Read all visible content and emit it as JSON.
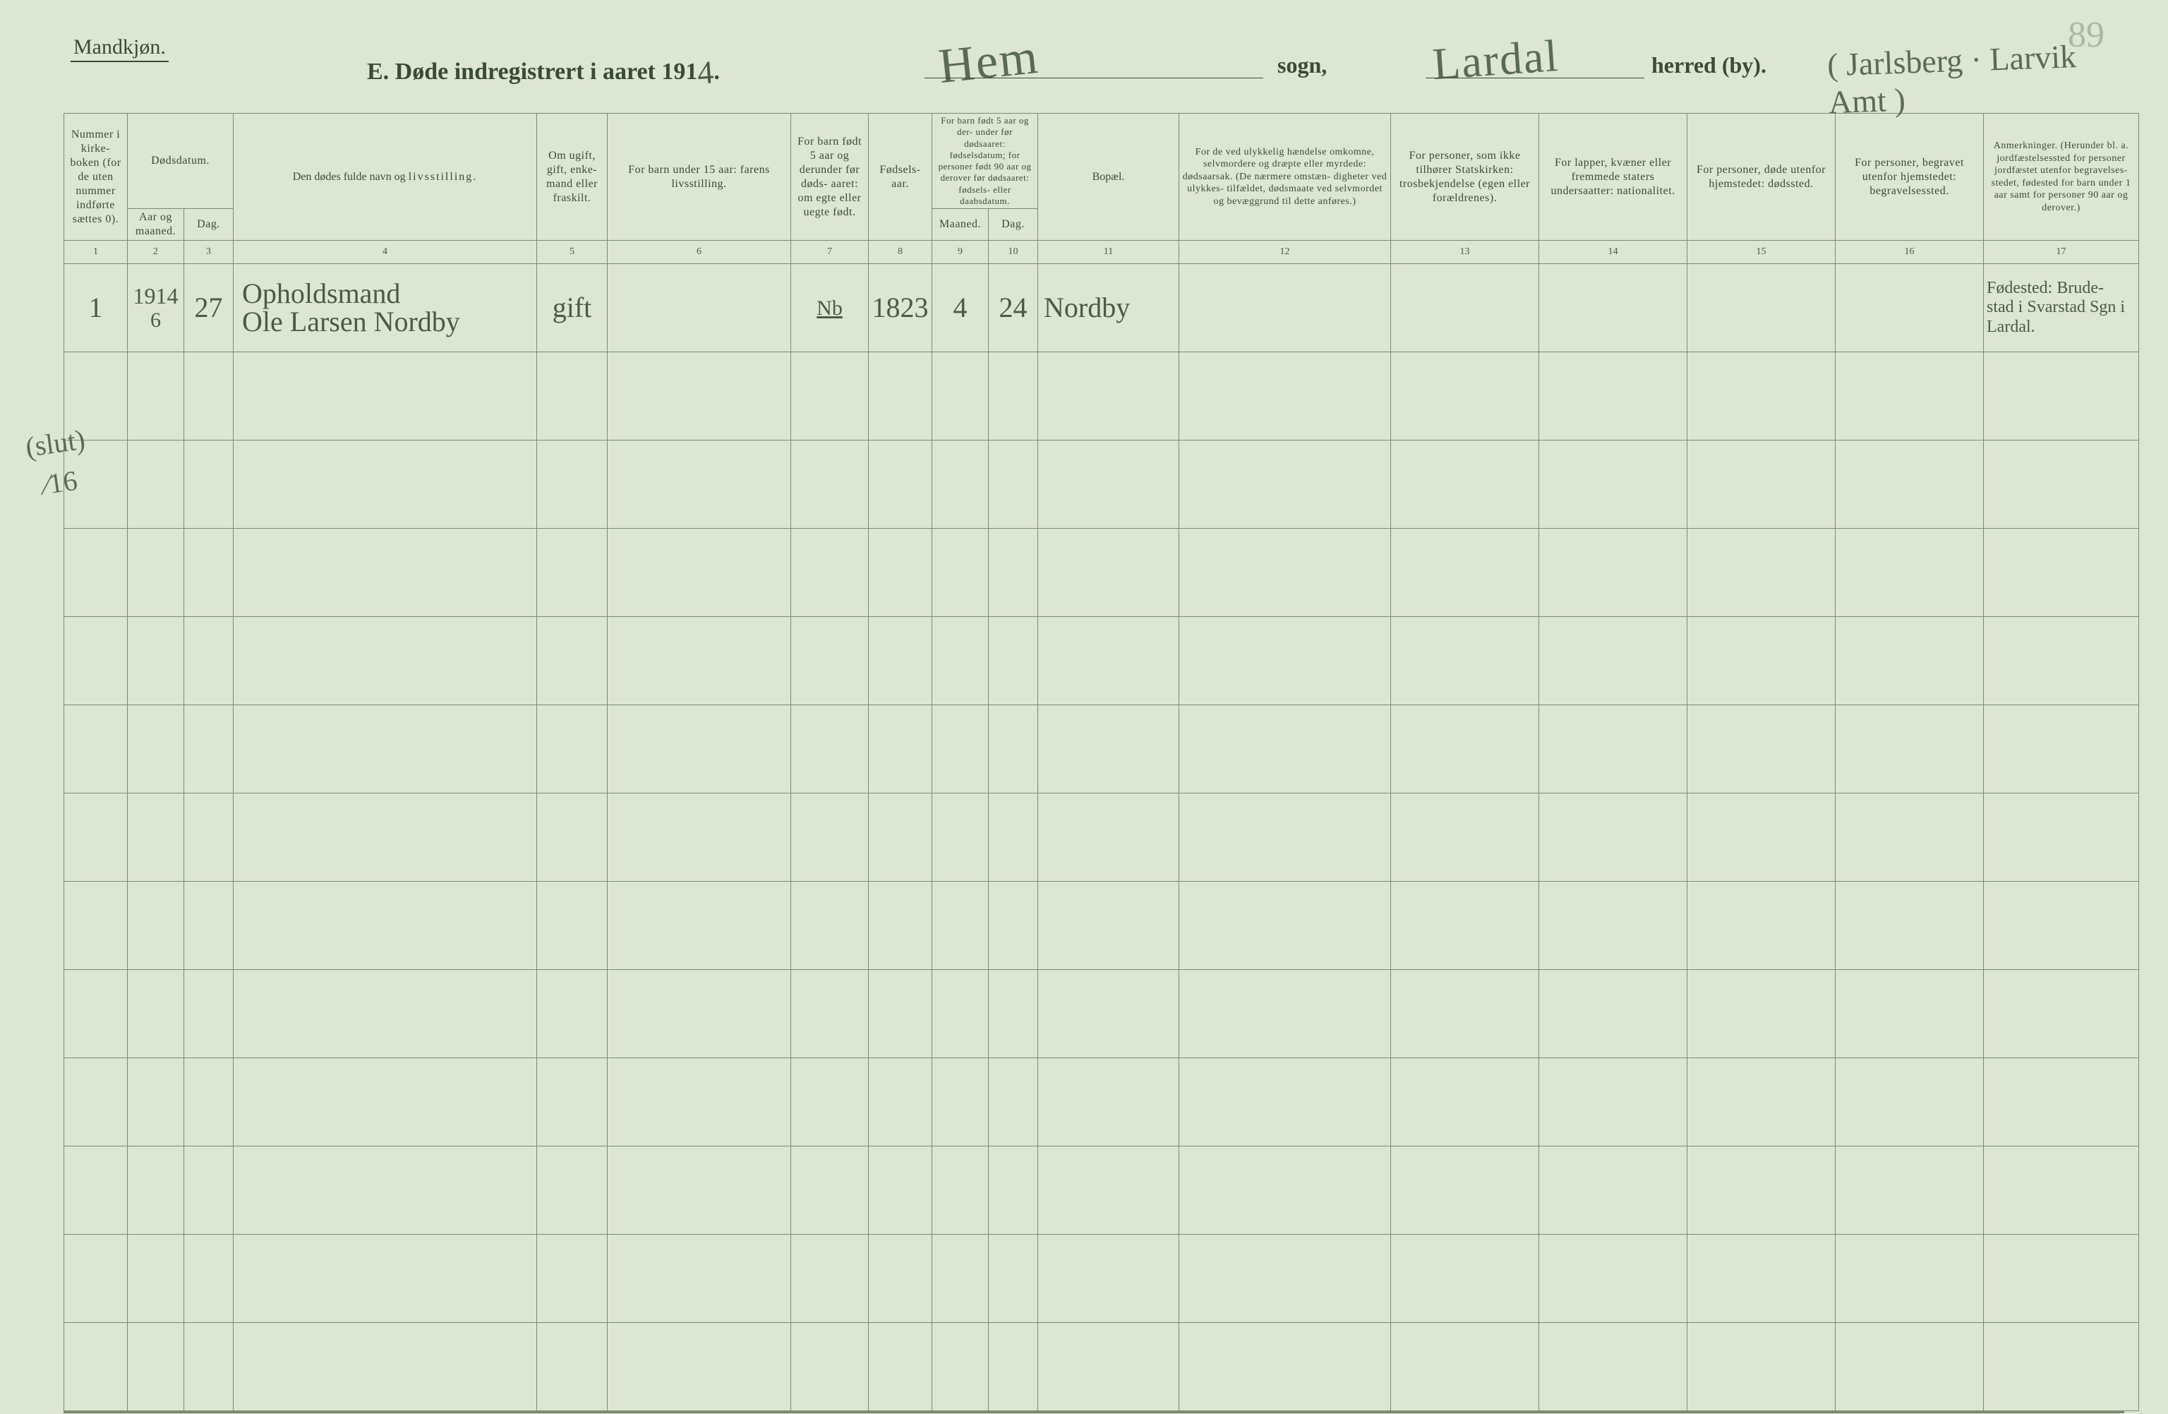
{
  "page_number_handwritten": "89",
  "header": {
    "gender": "Mandkjøn.",
    "title_prefix": "E.  Døde indregistrert i aaret 191",
    "year_suffix_hand": "4",
    "title_period": ".",
    "sogn_hand": "Hem",
    "sogn_label": "sogn,",
    "herred_hand": "Lardal",
    "herred_label": "herred (by).",
    "amt_hand": "( Jarlsberg · Larvik Amt )"
  },
  "columns": {
    "c1": "Nummer i kirke- boken (for de uten nummer indførte sættes 0).",
    "c2_group": "Dødsdatum.",
    "c2a": "Aar og maaned.",
    "c2b": "Dag.",
    "c4_line1": "Den dødes fulde navn og",
    "c4_line2": "livsstilling.",
    "c5": "Om ugift, gift, enke- mand eller fraskilt.",
    "c6": "For barn under 15 aar: farens livsstilling.",
    "c7": "For barn født 5 aar og derunder før døds- aaret: om egte eller uegte født.",
    "c8": "Fødsels- aar.",
    "c9_group_top": "For barn født 5 aar og der- under før dødsaaret: fødselsdatum; for personer født 90 aar og derover før dødsaaret: fødsels- eller daabsdatum.",
    "c9a": "Maaned.",
    "c9b": "Dag.",
    "c11": "Bopæl.",
    "c12": "For de ved ulykkelig hændelse omkomne, selvmordere og dræpte eller myrdede: dødsaarsak. (De nærmere omstæn- digheter ved ulykkes- tilfældet, dødsmaate ved selvmordet og bevæggrund til dette anføres.)",
    "c13": "For personer, som ikke tilhører Statskirken: trosbekjendelse (egen eller forældrenes).",
    "c14": "For lapper, kvæner eller fremmede staters undersaatter: nationalitet.",
    "c15": "For personer, døde utenfor hjemstedet: dødssted.",
    "c16": "For personer, begravet utenfor hjemstedet: begravelsessted.",
    "c17": "Anmerkninger. (Herunder bl. a. jordfæstelsessted for personer jordfæstet utenfor begravelses- stedet, fødested for barn under 1 aar samt for personer 90 aar og derover.)"
  },
  "colnums": [
    "1",
    "2",
    "3",
    "4",
    "5",
    "6",
    "7",
    "8",
    "9",
    "10",
    "11",
    "12",
    "13",
    "14",
    "15",
    "16",
    "17"
  ],
  "entries": [
    {
      "num": "1",
      "year_month_top": "1914",
      "year_month": "6",
      "day": "27",
      "name_top": "Opholdsmand",
      "name": "Ole Larsen Nordby",
      "status": "gift",
      "col6": "",
      "col7_top": "Nb",
      "col7": "",
      "birth_year": "1823",
      "birth_month": "4",
      "birth_day": "24",
      "bopael": "Nordby",
      "col12": "",
      "col13": "",
      "col14": "",
      "col15": "",
      "col16": "",
      "col17_top": "Fødested: Brude-",
      "col17": "stad i Svarstad Sgn i Lardal."
    }
  ],
  "side_note": "(slut)\n⁄16",
  "blank_rows": 12,
  "style": {
    "bg_color": "#dde6d2",
    "line_color": "#7a8a70",
    "text_color": "#3a4a38",
    "hand_color": "#4a5a48"
  }
}
